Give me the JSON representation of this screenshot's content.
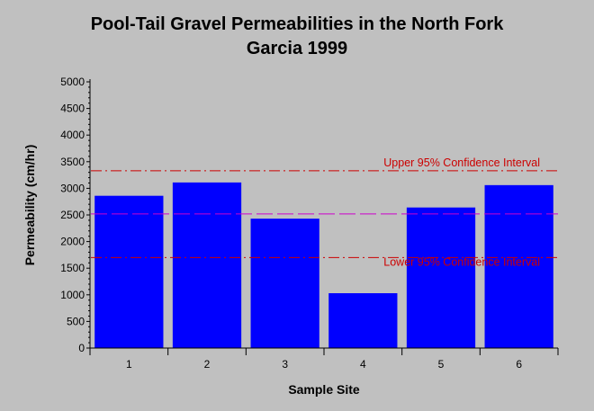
{
  "chart_data": {
    "type": "bar",
    "title": [
      "Pool-Tail Gravel Permeabilities in the North Fork",
      "Garcia 1999"
    ],
    "xlabel": "Sample Site",
    "ylabel": "Permeability (cm/hr)",
    "categories": [
      "1",
      "2",
      "3",
      "4",
      "5",
      "6"
    ],
    "values": [
      2860,
      3110,
      2430,
      1030,
      2640,
      3060
    ],
    "ylim": [
      0,
      5000
    ],
    "yticks": [
      0,
      500,
      1000,
      1500,
      2000,
      2500,
      3000,
      3500,
      4000,
      4500,
      5000
    ],
    "bar_color": "#0000ff",
    "reference_lines": [
      {
        "label": "Upper 95% Confidence Interval",
        "value": 3330,
        "style": "dash-dot",
        "color": "#cc0000"
      },
      {
        "label": "",
        "value": 2520,
        "style": "dashed",
        "color": "#cc00cc"
      },
      {
        "label": "Lower 95% Confidence Interval",
        "value": 1700,
        "style": "dash-dot",
        "color": "#cc0000"
      }
    ],
    "grid": false,
    "legend": "none"
  }
}
